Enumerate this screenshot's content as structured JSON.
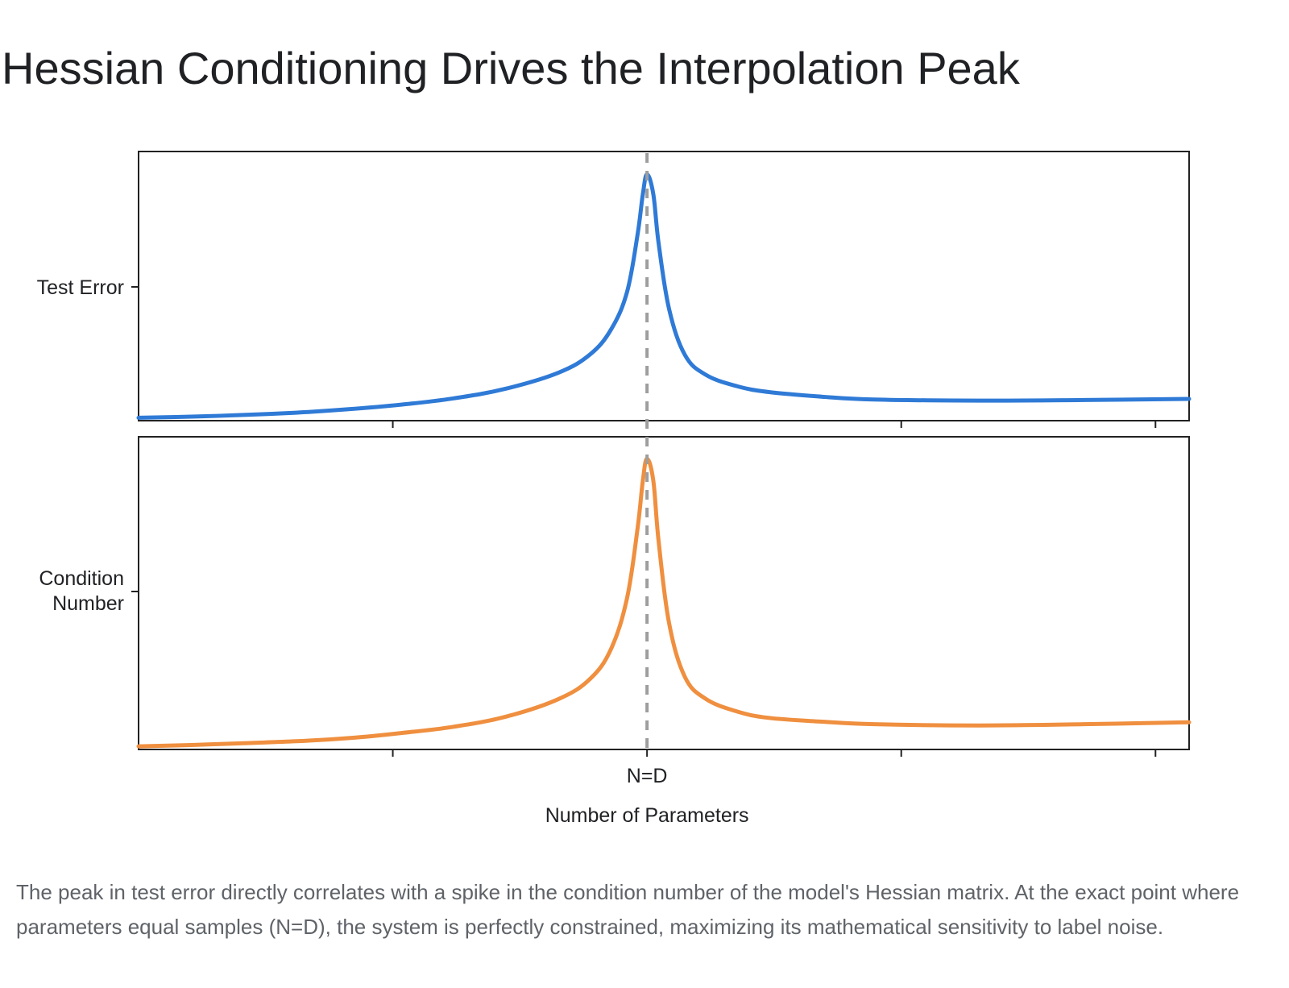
{
  "title": "Hessian Conditioning Drives the Interpolation Peak",
  "caption": "The peak in test error directly correlates with a spike in the condition number of the model's Hessian matrix. At the exact point where parameters equal samples (N=D), the system is perfectly constrained, maximizing its mathematical sensitivity to label noise.",
  "chart_data": [
    {
      "type": "line",
      "ylabel": "Test Error",
      "xlabel": "",
      "color": "#2f7ad6",
      "x": [
        0,
        0.05,
        0.1,
        0.15,
        0.2,
        0.25,
        0.3,
        0.35,
        0.4,
        0.43,
        0.45,
        0.465,
        0.475,
        0.48,
        0.484,
        0.49,
        0.495,
        0.505,
        0.52,
        0.54,
        0.57,
        0.6,
        0.65,
        0.7,
        0.8,
        0.9,
        1.0
      ],
      "y": [
        0.05,
        0.07,
        0.1,
        0.14,
        0.2,
        0.28,
        0.39,
        0.56,
        0.84,
        1.16,
        1.6,
        2.25,
        3.25,
        3.95,
        4.3,
        3.95,
        3.1,
        1.95,
        1.15,
        0.8,
        0.6,
        0.5,
        0.42,
        0.37,
        0.35,
        0.36,
        0.38
      ],
      "ylim": [
        0,
        4.7
      ],
      "grid": false
    },
    {
      "type": "line",
      "ylabel": "Condition Number",
      "xlabel": "Number of Parameters",
      "color": "#ef8f3f",
      "x": [
        0,
        0.05,
        0.1,
        0.15,
        0.2,
        0.25,
        0.3,
        0.35,
        0.4,
        0.43,
        0.45,
        0.465,
        0.475,
        0.48,
        0.484,
        0.49,
        0.495,
        0.505,
        0.52,
        0.54,
        0.57,
        0.6,
        0.65,
        0.7,
        0.8,
        0.9,
        1.0
      ],
      "y": [
        0.05,
        0.07,
        0.1,
        0.13,
        0.18,
        0.26,
        0.36,
        0.52,
        0.8,
        1.12,
        1.6,
        2.4,
        3.5,
        4.25,
        4.6,
        4.25,
        3.3,
        2.0,
        1.15,
        0.8,
        0.6,
        0.5,
        0.44,
        0.4,
        0.38,
        0.4,
        0.43
      ],
      "ylim": [
        0,
        4.95
      ],
      "grid": false
    }
  ],
  "shared_x": {
    "xlim": [
      0,
      1
    ],
    "ticks": [
      0.242,
      0.484,
      0.726,
      0.968
    ],
    "tick_labels": [
      "",
      "N=D",
      "",
      ""
    ],
    "marker_x": 0.484
  }
}
